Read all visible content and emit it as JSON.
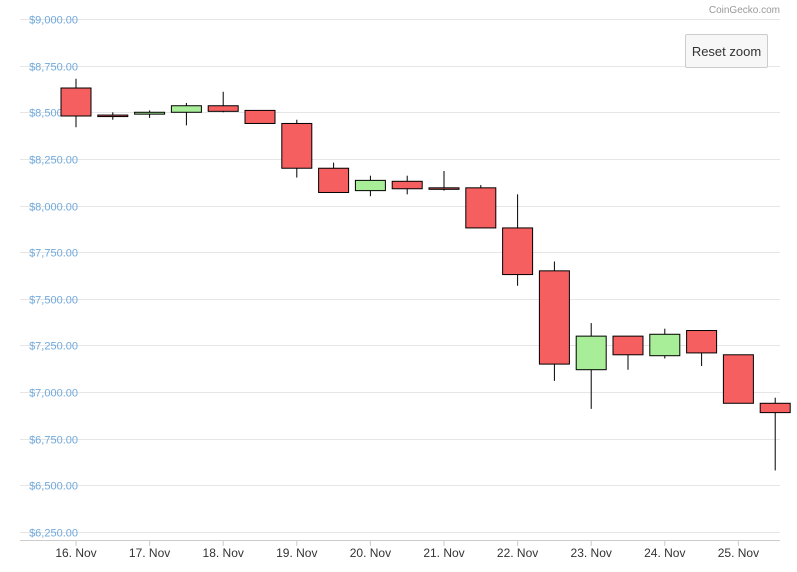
{
  "credit": "CoinGecko.com",
  "reset_zoom_label": "Reset zoom",
  "colors": {
    "up": "#a8ee98",
    "down": "#f55f5f",
    "grid": "#e6e6e6",
    "ytick": "#6fa8dc",
    "wick": "#000000"
  },
  "chart_data": {
    "type": "candlestick",
    "title": "",
    "xlabel": "",
    "ylabel": "",
    "ylim": [
      6250,
      9000
    ],
    "yticks": [
      "$9,000.00",
      "$8,750.00",
      "$8,500.00",
      "$8,250.00",
      "$8,000.00",
      "$7,750.00",
      "$7,500.00",
      "$7,250.00",
      "$7,000.00",
      "$6,750.00",
      "$6,500.00",
      "$6,250.00"
    ],
    "ytick_values": [
      9000,
      8750,
      8500,
      8250,
      8000,
      7750,
      7500,
      7250,
      7000,
      6750,
      6500,
      6250
    ],
    "xticks": [
      "16. Nov",
      "17. Nov",
      "18. Nov",
      "19. Nov",
      "20. Nov",
      "21. Nov",
      "22. Nov",
      "23. Nov",
      "24. Nov",
      "25. Nov"
    ],
    "grid": true,
    "candles": [
      {
        "date": "2019-11-16 00:00",
        "open": 8630,
        "high": 8680,
        "low": 8420,
        "close": 8480
      },
      {
        "date": "2019-11-16 12:00",
        "open": 8485,
        "high": 8500,
        "low": 8460,
        "close": 8480
      },
      {
        "date": "2019-11-17 00:00",
        "open": 8490,
        "high": 8510,
        "low": 8470,
        "close": 8500
      },
      {
        "date": "2019-11-17 12:00",
        "open": 8500,
        "high": 8550,
        "low": 8430,
        "close": 8535
      },
      {
        "date": "2019-11-18 00:00",
        "open": 8535,
        "high": 8610,
        "low": 8500,
        "close": 8505
      },
      {
        "date": "2019-11-18 12:00",
        "open": 8510,
        "high": 8510,
        "low": 8440,
        "close": 8440
      },
      {
        "date": "2019-11-19 00:00",
        "open": 8440,
        "high": 8460,
        "low": 8150,
        "close": 8200
      },
      {
        "date": "2019-11-19 12:00",
        "open": 8200,
        "high": 8230,
        "low": 8070,
        "close": 8070
      },
      {
        "date": "2019-11-20 00:00",
        "open": 8080,
        "high": 8160,
        "low": 8050,
        "close": 8135
      },
      {
        "date": "2019-11-20 12:00",
        "open": 8130,
        "high": 8160,
        "low": 8060,
        "close": 8090
      },
      {
        "date": "2019-11-21 00:00",
        "open": 8095,
        "high": 8185,
        "low": 8080,
        "close": 8090
      },
      {
        "date": "2019-11-21 12:00",
        "open": 8095,
        "high": 8110,
        "low": 7880,
        "close": 7880
      },
      {
        "date": "2019-11-22 00:00",
        "open": 7880,
        "high": 8060,
        "low": 7570,
        "close": 7630
      },
      {
        "date": "2019-11-22 12:00",
        "open": 7650,
        "high": 7700,
        "low": 7060,
        "close": 7150
      },
      {
        "date": "2019-11-23 00:00",
        "open": 7120,
        "high": 7370,
        "low": 6910,
        "close": 7300
      },
      {
        "date": "2019-11-23 12:00",
        "open": 7300,
        "high": 7300,
        "low": 7120,
        "close": 7200
      },
      {
        "date": "2019-11-24 00:00",
        "open": 7195,
        "high": 7340,
        "low": 7180,
        "close": 7310
      },
      {
        "date": "2019-11-24 12:00",
        "open": 7330,
        "high": 7330,
        "low": 7140,
        "close": 7210
      },
      {
        "date": "2019-11-25 00:00",
        "open": 7200,
        "high": 7200,
        "low": 6940,
        "close": 6940
      },
      {
        "date": "2019-11-25 12:00",
        "open": 6940,
        "high": 6970,
        "low": 6580,
        "close": 6890
      }
    ]
  }
}
